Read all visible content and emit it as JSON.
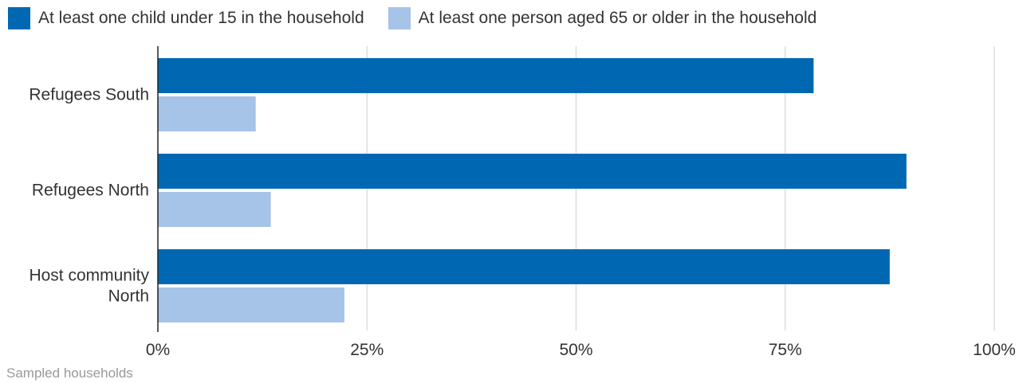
{
  "chart_data": {
    "type": "bar",
    "orientation": "horizontal",
    "categories": [
      [
        "Refugees South"
      ],
      [
        "Refugees North"
      ],
      [
        "Host community",
        "North"
      ]
    ],
    "series": [
      {
        "name": "At least one child under 15 in the household",
        "values": [
          78.4,
          89.5,
          87.5
        ],
        "color": "#0068b3"
      },
      {
        "name": "At least one person aged 65 or older in the household",
        "values": [
          11.7,
          13.5,
          22.3
        ],
        "color": "#a6c3e8"
      }
    ],
    "x_ticks": [
      "0%",
      "25%",
      "50%",
      "75%",
      "100%"
    ],
    "xlim": [
      0,
      100
    ],
    "grid": true,
    "legend_position": "top-left",
    "footnote": "Sampled households"
  }
}
